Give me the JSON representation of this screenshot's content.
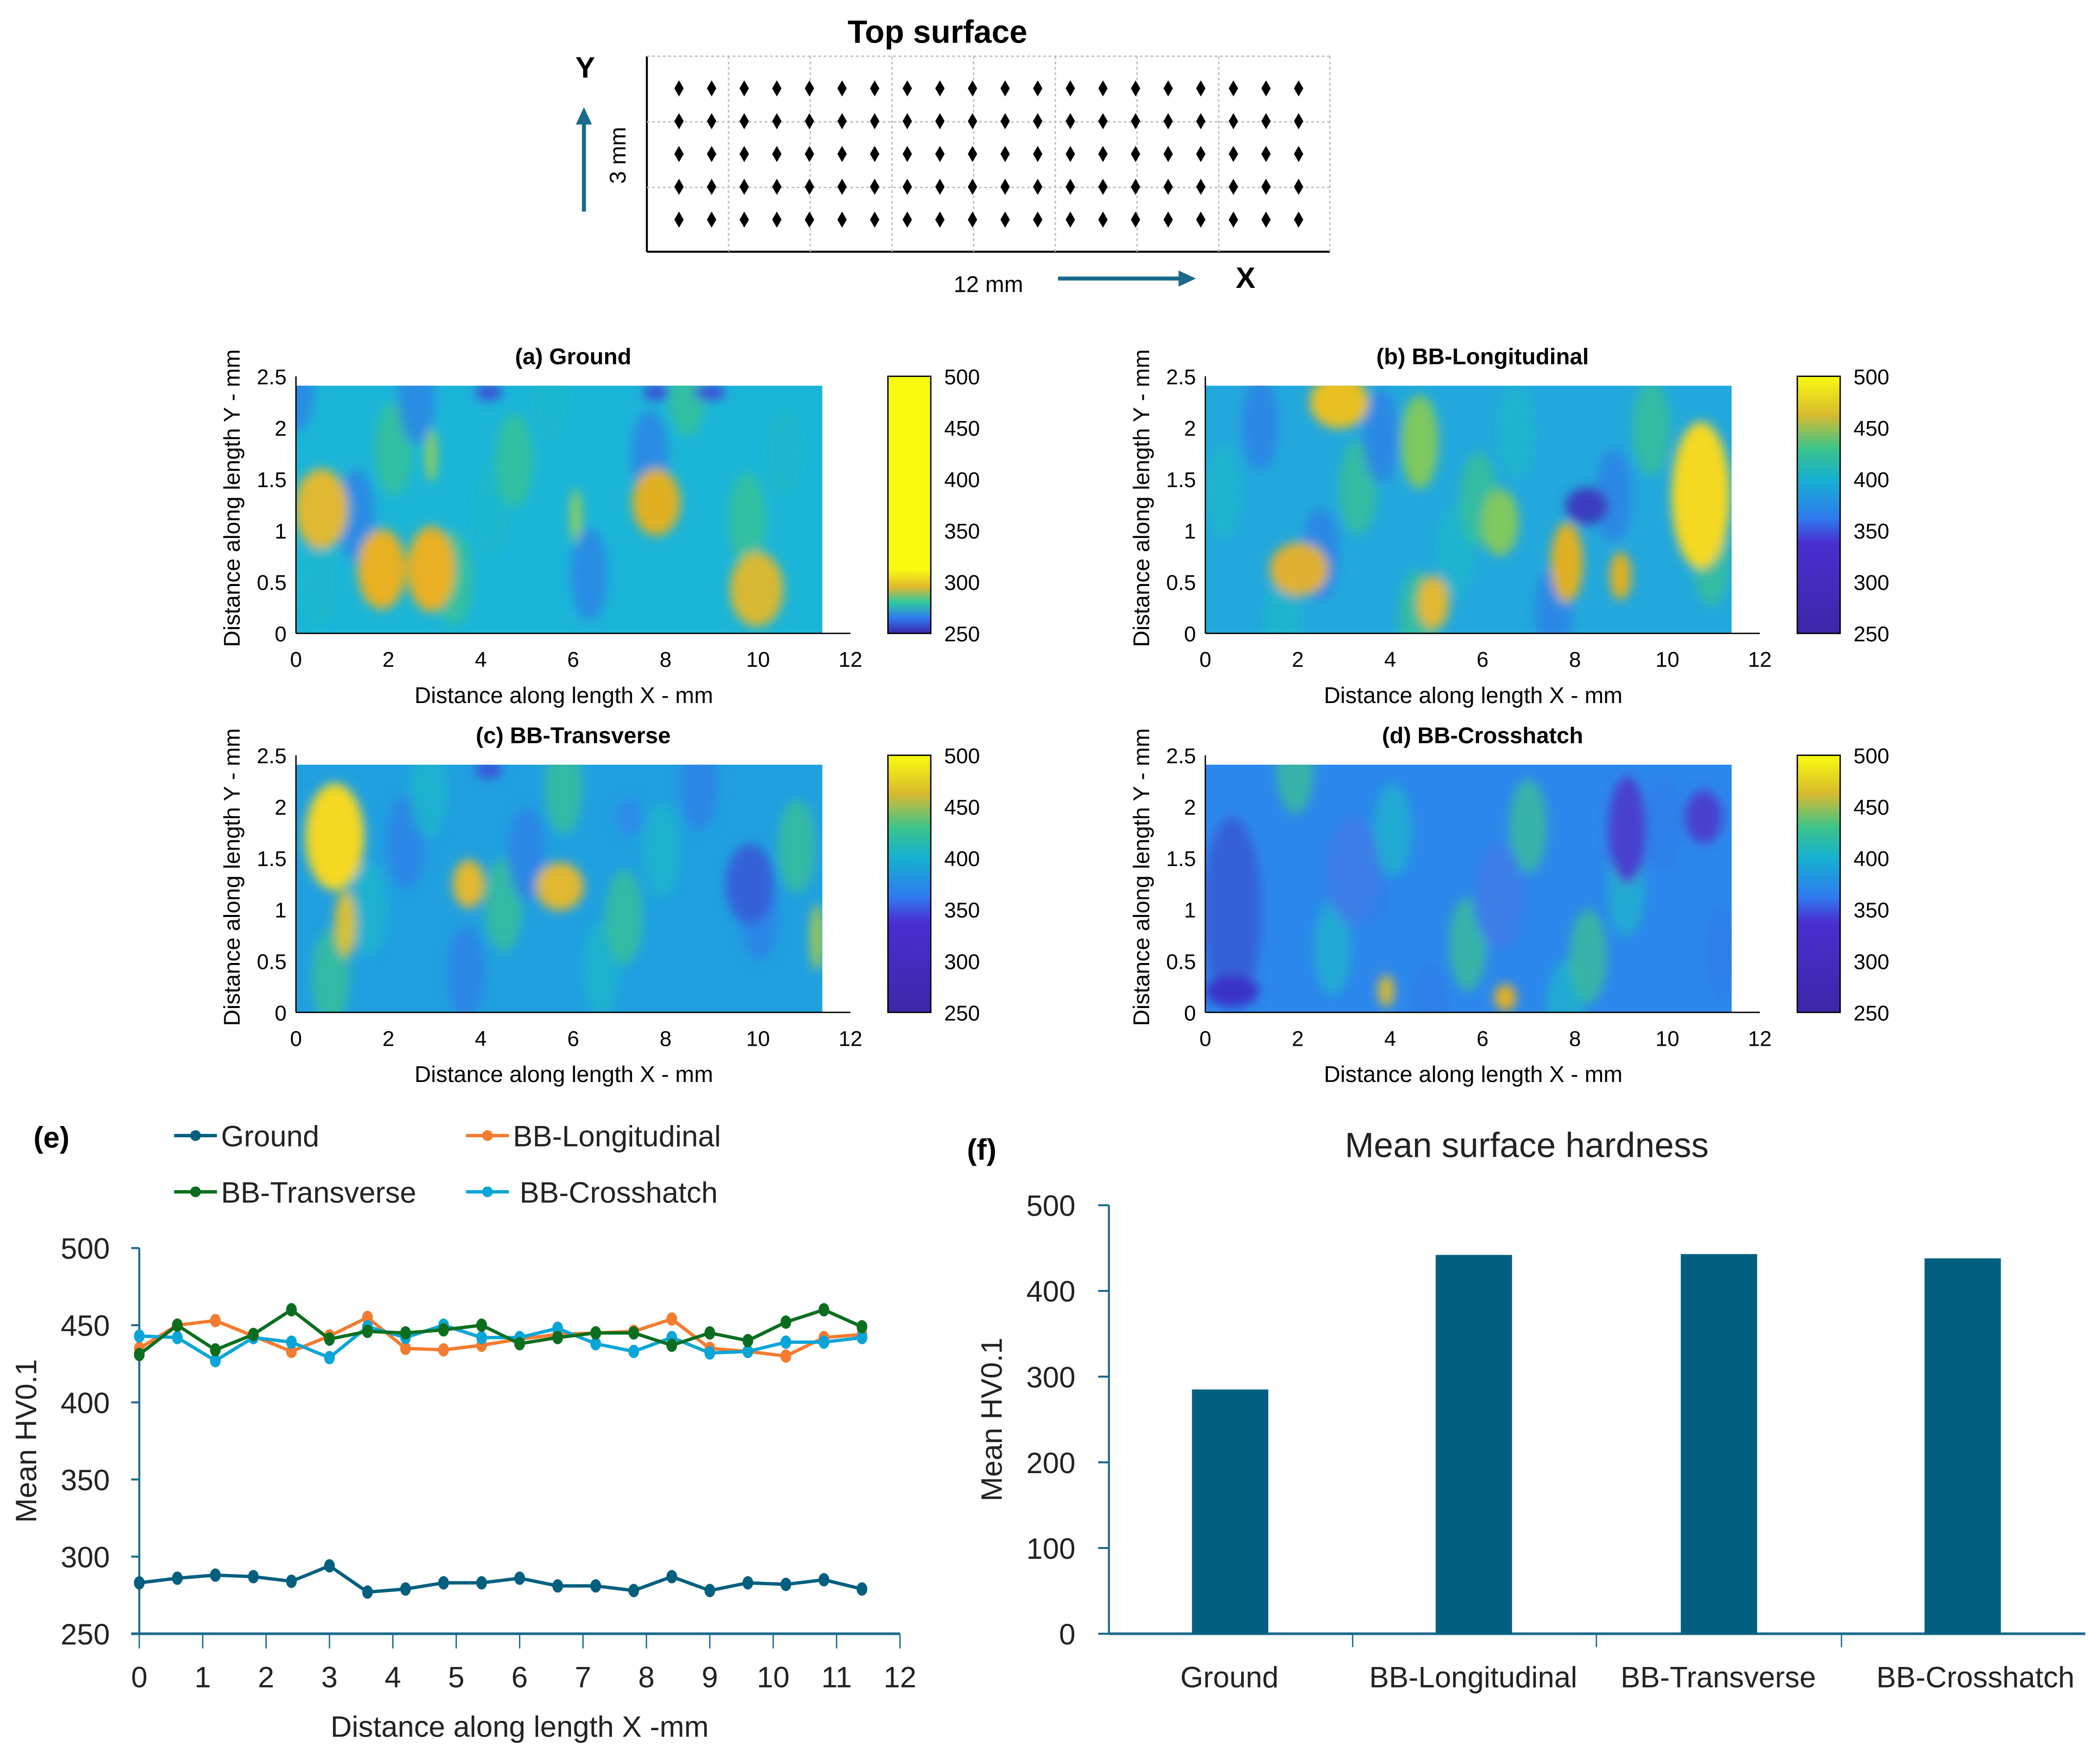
{
  "diagram": {
    "title": "Top surface",
    "y_label": "Y",
    "x_label": "X",
    "height_label": "3 mm",
    "length_label": "12 mm",
    "rows": 5,
    "cols": 20
  },
  "heatmaps": {
    "xlabel": "Distance along length X - mm",
    "ylabel": "Distance along length Y - mm",
    "xticks": [
      "0",
      "2",
      "4",
      "6",
      "8",
      "10",
      "12"
    ],
    "yticks": [
      "0",
      "0.5",
      "1",
      "1.5",
      "2",
      "2.5"
    ],
    "colorbar_ticks": [
      "250",
      "300",
      "350",
      "400",
      "450",
      "500"
    ],
    "panels": [
      {
        "title": "(a) Ground"
      },
      {
        "title": "(b) BB-Longitudinal"
      },
      {
        "title": "(c) BB-Transverse"
      },
      {
        "title": "(d) BB-Crosshatch"
      }
    ]
  },
  "chart_data": [
    {
      "type": "line",
      "panel_label": "(e)",
      "xlabel": "Distance along length X -mm",
      "ylabel": "Mean HV0.1",
      "xlim": [
        0,
        12
      ],
      "ylim": [
        250,
        500
      ],
      "xticks": [
        "0",
        "1",
        "2",
        "3",
        "4",
        "5",
        "6",
        "7",
        "8",
        "9",
        "10",
        "11",
        "12"
      ],
      "yticks": [
        "250",
        "300",
        "350",
        "400",
        "450",
        "500"
      ],
      "legend": "top",
      "x": [
        0,
        0.6,
        1.2,
        1.8,
        2.4,
        3.0,
        3.6,
        4.2,
        4.8,
        5.4,
        6.0,
        6.6,
        7.2,
        7.8,
        8.4,
        9.0,
        9.6,
        10.2,
        10.8,
        11.4
      ],
      "series": [
        {
          "name": "Ground",
          "color": "#005f7f",
          "values": [
            283,
            286,
            288,
            287,
            284,
            294,
            277,
            279,
            283,
            283,
            286,
            281,
            281,
            278,
            287,
            278,
            283,
            282,
            285,
            279
          ]
        },
        {
          "name": "BB-Longitudinal",
          "color": "#f47b30",
          "values": [
            435,
            450,
            453,
            443,
            433,
            443,
            455,
            435,
            434,
            437,
            441,
            444,
            445,
            446,
            454,
            435,
            433,
            430,
            442,
            444
          ]
        },
        {
          "name": "BB-Transverse",
          "color": "#0b6e1f",
          "values": [
            431,
            450,
            434,
            444,
            460,
            441,
            446,
            445,
            447,
            450,
            438,
            442,
            445,
            445,
            437,
            445,
            440,
            452,
            460,
            449
          ]
        },
        {
          "name": "BB-Crosshatch",
          "color": "#0aa5d8",
          "values": [
            443,
            442,
            427,
            442,
            439,
            429,
            449,
            442,
            450,
            442,
            442,
            448,
            438,
            433,
            442,
            432,
            433,
            439,
            439,
            442
          ]
        }
      ]
    },
    {
      "type": "bar",
      "panel_label": "(f)",
      "title": "Mean surface hardness",
      "ylabel": "Mean HV0.1",
      "xlabel": "",
      "ylim": [
        0,
        500
      ],
      "yticks": [
        "0",
        "100",
        "200",
        "300",
        "400",
        "500"
      ],
      "categories": [
        "Ground",
        "BB-Longitudinal",
        "BB-Transverse",
        "BB-Crosshatch"
      ],
      "values": [
        285,
        442,
        443,
        438
      ],
      "color": "#005f7f"
    }
  ]
}
